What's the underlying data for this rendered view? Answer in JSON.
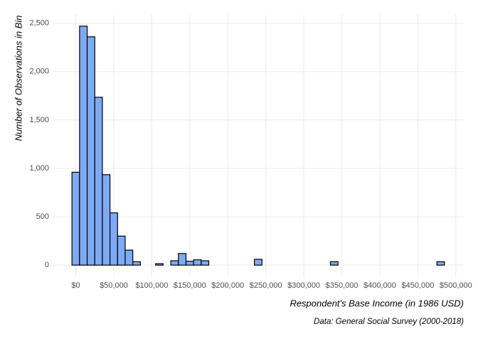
{
  "chart_data": {
    "type": "histogram",
    "x_label": "Respondent's Base Income (in 1986 USD)",
    "y_label": "Number of Observations in Bin",
    "caption": "Data: General Social Survey (2000-2018)",
    "bins": [
      -5000,
      5000,
      15000,
      25000,
      35000,
      45000,
      55000,
      65000,
      75000,
      85000,
      95000,
      105000,
      115000,
      125000,
      135000,
      145000,
      155000,
      165000,
      175000,
      185000,
      195000,
      205000,
      215000,
      225000,
      235000,
      245000,
      255000,
      265000,
      275000,
      285000,
      295000,
      305000,
      315000,
      325000,
      335000,
      345000,
      355000,
      365000,
      375000,
      385000,
      395000,
      405000,
      415000,
      425000,
      435000,
      445000,
      455000,
      465000,
      475000,
      485000
    ],
    "values": [
      960,
      2470,
      2360,
      1735,
      935,
      540,
      300,
      155,
      35,
      0,
      0,
      15,
      0,
      45,
      120,
      40,
      55,
      45,
      0,
      0,
      0,
      0,
      0,
      0,
      60,
      0,
      0,
      0,
      0,
      0,
      0,
      0,
      0,
      0,
      35,
      0,
      0,
      0,
      0,
      0,
      0,
      0,
      0,
      0,
      0,
      0,
      0,
      0,
      35
    ],
    "color": "#7eaaf5",
    "xlim": [
      -29500,
      509500
    ],
    "ylim": [
      -123.5,
      2593.5
    ],
    "xticks": [
      {
        "value": 0,
        "label": "$0"
      },
      {
        "value": 50000,
        "label": "$50,000"
      },
      {
        "value": 100000,
        "label": "$100,000"
      },
      {
        "value": 150000,
        "label": "$150,000"
      },
      {
        "value": 200000,
        "label": "$200,000"
      },
      {
        "value": 250000,
        "label": "$250,000"
      },
      {
        "value": 300000,
        "label": "$300,000"
      },
      {
        "value": 350000,
        "label": "$350,000"
      },
      {
        "value": 400000,
        "label": "$400,000"
      },
      {
        "value": 450000,
        "label": "$450,000"
      },
      {
        "value": 500000,
        "label": "$500,000"
      }
    ],
    "yticks": [
      0,
      500,
      {
        "value": 1000,
        "label": "1,000"
      },
      {
        "value": 1500,
        "label": "1,500"
      },
      {
        "value": 2000,
        "label": "2,000"
      },
      {
        "value": 2500,
        "label": "2,500"
      }
    ],
    "grid": true
  }
}
